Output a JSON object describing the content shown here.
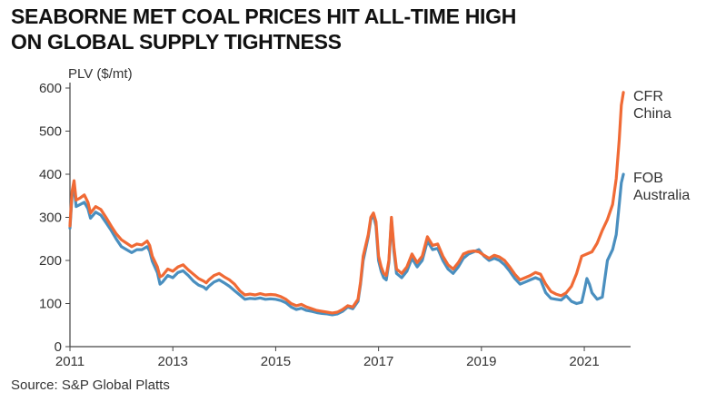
{
  "header": {
    "title_line1": "SEABORNE MET COAL PRICES HIT ALL-TIME HIGH",
    "title_line2": "ON GLOBAL SUPPLY TIGHTNESS"
  },
  "footer": {
    "source": "Source: S&P Global Platts"
  },
  "colors": {
    "cfr_china": "#f06a35",
    "fob_australia": "#4a8fbf",
    "axis": "#444444",
    "text": "#333333"
  },
  "chart_data": {
    "type": "line",
    "ylabel": "PLV ($/mt)",
    "xlim": [
      2011,
      2021.9
    ],
    "ylim": [
      0,
      600
    ],
    "x_ticks": [
      2011,
      2013,
      2015,
      2017,
      2019,
      2021
    ],
    "y_ticks": [
      0,
      100,
      200,
      300,
      400,
      500,
      600
    ],
    "grid": false,
    "legend": "line-end labels",
    "series": [
      {
        "name": "CFR China",
        "label_lines": [
          "CFR",
          "China"
        ],
        "points": [
          [
            2011.0,
            280
          ],
          [
            2011.04,
            360
          ],
          [
            2011.08,
            385
          ],
          [
            2011.12,
            340
          ],
          [
            2011.2,
            345
          ],
          [
            2011.28,
            352
          ],
          [
            2011.35,
            335
          ],
          [
            2011.4,
            310
          ],
          [
            2011.5,
            325
          ],
          [
            2011.6,
            318
          ],
          [
            2011.7,
            300
          ],
          [
            2011.8,
            280
          ],
          [
            2011.9,
            262
          ],
          [
            2012.0,
            248
          ],
          [
            2012.1,
            240
          ],
          [
            2012.2,
            232
          ],
          [
            2012.3,
            238
          ],
          [
            2012.4,
            236
          ],
          [
            2012.5,
            245
          ],
          [
            2012.55,
            235
          ],
          [
            2012.6,
            210
          ],
          [
            2012.7,
            185
          ],
          [
            2012.75,
            162
          ],
          [
            2012.8,
            165
          ],
          [
            2012.9,
            180
          ],
          [
            2013.0,
            175
          ],
          [
            2013.1,
            185
          ],
          [
            2013.2,
            190
          ],
          [
            2013.3,
            178
          ],
          [
            2013.4,
            168
          ],
          [
            2013.5,
            158
          ],
          [
            2013.6,
            152
          ],
          [
            2013.65,
            148
          ],
          [
            2013.7,
            155
          ],
          [
            2013.8,
            165
          ],
          [
            2013.9,
            170
          ],
          [
            2014.0,
            162
          ],
          [
            2014.1,
            155
          ],
          [
            2014.2,
            145
          ],
          [
            2014.3,
            130
          ],
          [
            2014.4,
            120
          ],
          [
            2014.5,
            122
          ],
          [
            2014.6,
            120
          ],
          [
            2014.7,
            123
          ],
          [
            2014.8,
            120
          ],
          [
            2014.9,
            121
          ],
          [
            2015.0,
            120
          ],
          [
            2015.1,
            116
          ],
          [
            2015.2,
            110
          ],
          [
            2015.3,
            100
          ],
          [
            2015.4,
            95
          ],
          [
            2015.5,
            98
          ],
          [
            2015.6,
            92
          ],
          [
            2015.7,
            88
          ],
          [
            2015.8,
            84
          ],
          [
            2015.9,
            82
          ],
          [
            2016.0,
            80
          ],
          [
            2016.1,
            78
          ],
          [
            2016.2,
            80
          ],
          [
            2016.3,
            86
          ],
          [
            2016.4,
            95
          ],
          [
            2016.5,
            92
          ],
          [
            2016.6,
            110
          ],
          [
            2016.65,
            150
          ],
          [
            2016.7,
            210
          ],
          [
            2016.8,
            260
          ],
          [
            2016.85,
            300
          ],
          [
            2016.9,
            310
          ],
          [
            2016.95,
            290
          ],
          [
            2017.0,
            210
          ],
          [
            2017.05,
            185
          ],
          [
            2017.1,
            170
          ],
          [
            2017.15,
            165
          ],
          [
            2017.2,
            200
          ],
          [
            2017.25,
            300
          ],
          [
            2017.3,
            230
          ],
          [
            2017.35,
            180
          ],
          [
            2017.45,
            170
          ],
          [
            2017.55,
            185
          ],
          [
            2017.65,
            215
          ],
          [
            2017.75,
            195
          ],
          [
            2017.85,
            210
          ],
          [
            2017.95,
            255
          ],
          [
            2018.05,
            235
          ],
          [
            2018.15,
            238
          ],
          [
            2018.25,
            210
          ],
          [
            2018.35,
            190
          ],
          [
            2018.45,
            180
          ],
          [
            2018.55,
            195
          ],
          [
            2018.65,
            215
          ],
          [
            2018.75,
            220
          ],
          [
            2018.85,
            222
          ],
          [
            2018.95,
            220
          ],
          [
            2019.05,
            212
          ],
          [
            2019.15,
            205
          ],
          [
            2019.25,
            212
          ],
          [
            2019.35,
            208
          ],
          [
            2019.45,
            200
          ],
          [
            2019.55,
            185
          ],
          [
            2019.65,
            168
          ],
          [
            2019.75,
            155
          ],
          [
            2019.85,
            160
          ],
          [
            2019.95,
            165
          ],
          [
            2020.05,
            172
          ],
          [
            2020.15,
            168
          ],
          [
            2020.25,
            145
          ],
          [
            2020.35,
            128
          ],
          [
            2020.45,
            122
          ],
          [
            2020.55,
            118
          ],
          [
            2020.65,
            125
          ],
          [
            2020.75,
            140
          ],
          [
            2020.85,
            170
          ],
          [
            2020.95,
            210
          ],
          [
            2021.05,
            215
          ],
          [
            2021.15,
            220
          ],
          [
            2021.25,
            240
          ],
          [
            2021.35,
            270
          ],
          [
            2021.45,
            295
          ],
          [
            2021.55,
            330
          ],
          [
            2021.62,
            390
          ],
          [
            2021.68,
            480
          ],
          [
            2021.72,
            560
          ],
          [
            2021.76,
            590
          ]
        ]
      },
      {
        "name": "FOB Australia",
        "label_lines": [
          "FOB",
          "Australia"
        ],
        "points": [
          [
            2011.0,
            275
          ],
          [
            2011.04,
            350
          ],
          [
            2011.08,
            370
          ],
          [
            2011.12,
            325
          ],
          [
            2011.2,
            330
          ],
          [
            2011.28,
            335
          ],
          [
            2011.35,
            320
          ],
          [
            2011.4,
            298
          ],
          [
            2011.5,
            312
          ],
          [
            2011.6,
            305
          ],
          [
            2011.7,
            288
          ],
          [
            2011.8,
            270
          ],
          [
            2011.9,
            250
          ],
          [
            2012.0,
            232
          ],
          [
            2012.1,
            225
          ],
          [
            2012.2,
            218
          ],
          [
            2012.3,
            225
          ],
          [
            2012.4,
            225
          ],
          [
            2012.5,
            232
          ],
          [
            2012.55,
            222
          ],
          [
            2012.6,
            198
          ],
          [
            2012.7,
            172
          ],
          [
            2012.75,
            145
          ],
          [
            2012.8,
            150
          ],
          [
            2012.9,
            165
          ],
          [
            2013.0,
            160
          ],
          [
            2013.1,
            172
          ],
          [
            2013.2,
            176
          ],
          [
            2013.3,
            165
          ],
          [
            2013.4,
            152
          ],
          [
            2013.5,
            143
          ],
          [
            2013.6,
            138
          ],
          [
            2013.65,
            133
          ],
          [
            2013.7,
            140
          ],
          [
            2013.8,
            150
          ],
          [
            2013.9,
            155
          ],
          [
            2014.0,
            148
          ],
          [
            2014.1,
            140
          ],
          [
            2014.2,
            130
          ],
          [
            2014.3,
            120
          ],
          [
            2014.4,
            110
          ],
          [
            2014.5,
            112
          ],
          [
            2014.6,
            111
          ],
          [
            2014.7,
            113
          ],
          [
            2014.8,
            110
          ],
          [
            2014.9,
            111
          ],
          [
            2015.0,
            110
          ],
          [
            2015.1,
            107
          ],
          [
            2015.2,
            102
          ],
          [
            2015.3,
            92
          ],
          [
            2015.4,
            86
          ],
          [
            2015.5,
            89
          ],
          [
            2015.6,
            84
          ],
          [
            2015.7,
            82
          ],
          [
            2015.8,
            79
          ],
          [
            2015.9,
            77
          ],
          [
            2016.0,
            76
          ],
          [
            2016.1,
            74
          ],
          [
            2016.2,
            76
          ],
          [
            2016.3,
            82
          ],
          [
            2016.4,
            92
          ],
          [
            2016.5,
            88
          ],
          [
            2016.6,
            105
          ],
          [
            2016.65,
            145
          ],
          [
            2016.7,
            200
          ],
          [
            2016.8,
            255
          ],
          [
            2016.85,
            295
          ],
          [
            2016.9,
            305
          ],
          [
            2016.95,
            280
          ],
          [
            2017.0,
            200
          ],
          [
            2017.05,
            175
          ],
          [
            2017.1,
            160
          ],
          [
            2017.15,
            155
          ],
          [
            2017.2,
            195
          ],
          [
            2017.25,
            295
          ],
          [
            2017.3,
            220
          ],
          [
            2017.35,
            170
          ],
          [
            2017.45,
            160
          ],
          [
            2017.55,
            175
          ],
          [
            2017.65,
            205
          ],
          [
            2017.75,
            185
          ],
          [
            2017.85,
            200
          ],
          [
            2017.95,
            245
          ],
          [
            2018.05,
            225
          ],
          [
            2018.15,
            228
          ],
          [
            2018.25,
            200
          ],
          [
            2018.35,
            180
          ],
          [
            2018.45,
            170
          ],
          [
            2018.55,
            185
          ],
          [
            2018.65,
            205
          ],
          [
            2018.75,
            215
          ],
          [
            2018.85,
            220
          ],
          [
            2018.95,
            225
          ],
          [
            2019.05,
            210
          ],
          [
            2019.15,
            200
          ],
          [
            2019.25,
            205
          ],
          [
            2019.35,
            200
          ],
          [
            2019.45,
            190
          ],
          [
            2019.55,
            175
          ],
          [
            2019.65,
            158
          ],
          [
            2019.75,
            145
          ],
          [
            2019.85,
            150
          ],
          [
            2019.95,
            155
          ],
          [
            2020.05,
            160
          ],
          [
            2020.15,
            155
          ],
          [
            2020.25,
            125
          ],
          [
            2020.35,
            112
          ],
          [
            2020.45,
            110
          ],
          [
            2020.55,
            108
          ],
          [
            2020.65,
            118
          ],
          [
            2020.75,
            105
          ],
          [
            2020.85,
            100
          ],
          [
            2020.95,
            103
          ],
          [
            2021.0,
            130
          ],
          [
            2021.05,
            158
          ],
          [
            2021.1,
            145
          ],
          [
            2021.15,
            125
          ],
          [
            2021.25,
            110
          ],
          [
            2021.35,
            115
          ],
          [
            2021.45,
            200
          ],
          [
            2021.55,
            225
          ],
          [
            2021.62,
            260
          ],
          [
            2021.68,
            330
          ],
          [
            2021.72,
            380
          ],
          [
            2021.76,
            400
          ]
        ]
      }
    ]
  }
}
